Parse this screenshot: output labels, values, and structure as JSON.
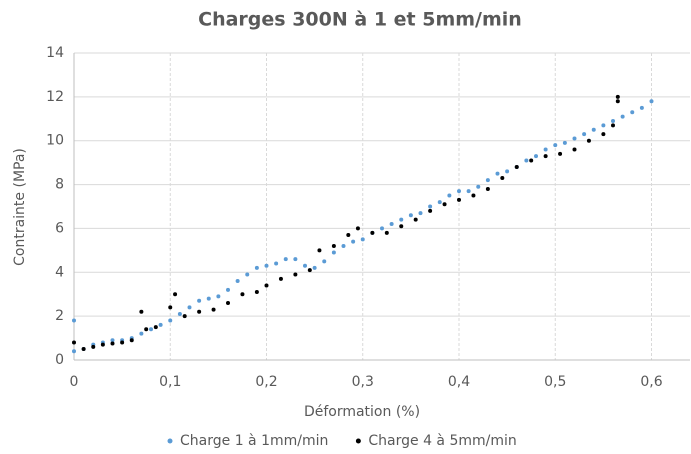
{
  "chart_data": {
    "type": "scatter",
    "title": "Charges 300N à 1 et 5mm/min",
    "x_label": "Déformation (%)",
    "y_label": "Contrainte (MPa)",
    "xlim": [
      0,
      0.64
    ],
    "ylim": [
      0,
      14
    ],
    "xticks": [
      0,
      {
        "value": 0.1,
        "label": "0,1"
      },
      {
        "value": 0.2,
        "label": "0,2"
      },
      {
        "value": 0.3,
        "label": "0,3"
      },
      {
        "value": 0.4,
        "label": "0,4"
      },
      {
        "value": 0.5,
        "label": "0,5"
      },
      {
        "value": 0.6,
        "label": "0,6"
      }
    ],
    "yticks": [
      0,
      2,
      4,
      6,
      8,
      10,
      12,
      14
    ],
    "grid": true,
    "legend": "bottom",
    "series": [
      {
        "name": "Charge 1 à 1mm/min",
        "color": "#5b9bd5",
        "x": [
          0,
          0,
          0.01,
          0.02,
          0.03,
          0.04,
          0.05,
          0.06,
          0.07,
          0.08,
          0.09,
          0.1,
          0.11,
          0.12,
          0.13,
          0.14,
          0.15,
          0.16,
          0.17,
          0.18,
          0.19,
          0.2,
          0.21,
          0.22,
          0.23,
          0.24,
          0.25,
          0.26,
          0.27,
          0.28,
          0.29,
          0.3,
          0.31,
          0.32,
          0.33,
          0.34,
          0.35,
          0.36,
          0.37,
          0.38,
          0.39,
          0.4,
          0.41,
          0.42,
          0.43,
          0.44,
          0.45,
          0.46,
          0.47,
          0.48,
          0.49,
          0.5,
          0.51,
          0.52,
          0.53,
          0.54,
          0.55,
          0.56,
          0.57,
          0.58,
          0.59,
          0.6
        ],
        "values": [
          1.8,
          0.4,
          0.5,
          0.7,
          0.8,
          0.9,
          0.9,
          1.0,
          1.2,
          1.4,
          1.6,
          1.8,
          2.1,
          2.4,
          2.7,
          2.8,
          2.9,
          3.2,
          3.6,
          3.9,
          4.2,
          4.3,
          4.4,
          4.6,
          4.6,
          4.3,
          4.2,
          4.5,
          4.9,
          5.2,
          5.4,
          5.5,
          5.8,
          6.0,
          6.2,
          6.4,
          6.6,
          6.7,
          7.0,
          7.2,
          7.5,
          7.7,
          7.7,
          7.9,
          8.2,
          8.5,
          8.6,
          8.8,
          9.1,
          9.3,
          9.6,
          9.8,
          9.9,
          10.1,
          10.3,
          10.5,
          10.7,
          10.9,
          11.1,
          11.3,
          11.5,
          11.8
        ]
      },
      {
        "name": "Charge 4 à 5mm/min",
        "color": "#000000",
        "x": [
          0,
          0.01,
          0.02,
          0.03,
          0.04,
          0.05,
          0.06,
          0.07,
          0.075,
          0.085,
          0.1,
          0.105,
          0.115,
          0.13,
          0.145,
          0.16,
          0.175,
          0.19,
          0.2,
          0.215,
          0.23,
          0.245,
          0.255,
          0.27,
          0.285,
          0.295,
          0.31,
          0.325,
          0.34,
          0.355,
          0.37,
          0.385,
          0.4,
          0.415,
          0.43,
          0.445,
          0.46,
          0.475,
          0.49,
          0.505,
          0.52,
          0.535,
          0.55,
          0.56,
          0.565,
          0.565
        ],
        "values": [
          0.8,
          0.5,
          0.6,
          0.7,
          0.75,
          0.8,
          0.9,
          2.2,
          1.4,
          1.5,
          2.4,
          3.0,
          2.0,
          2.2,
          2.3,
          2.6,
          3.0,
          3.1,
          3.4,
          3.7,
          3.9,
          4.1,
          5.0,
          5.2,
          5.7,
          6.0,
          5.8,
          5.8,
          6.1,
          6.4,
          6.8,
          7.1,
          7.3,
          7.5,
          7.8,
          8.3,
          8.8,
          9.1,
          9.3,
          9.4,
          9.6,
          10.0,
          10.3,
          10.7,
          12.0,
          11.8
        ]
      }
    ]
  }
}
